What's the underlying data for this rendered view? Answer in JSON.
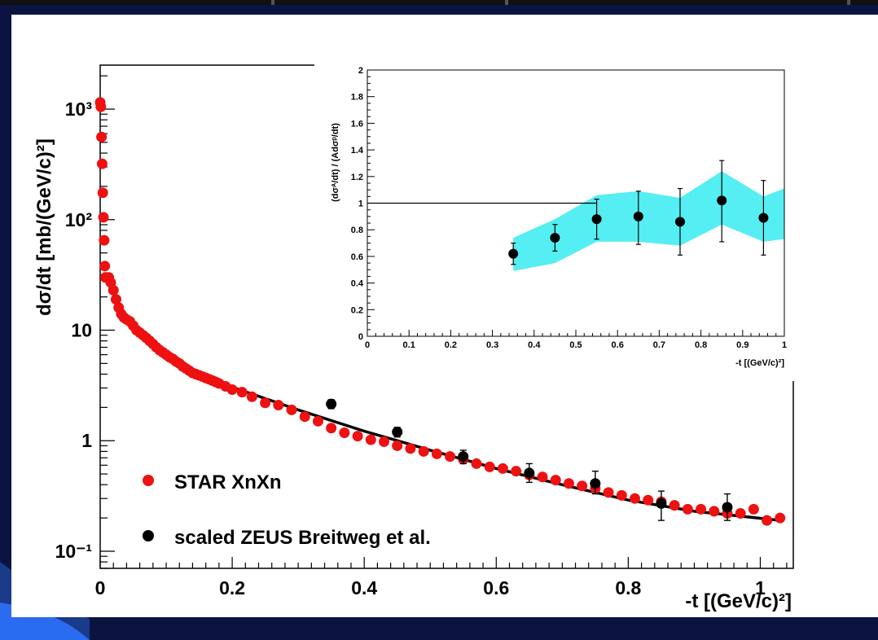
{
  "colors": {
    "star": "#ee1111",
    "zeus": "#000000",
    "band": "#55eef2",
    "slide_bg": "#0b1440",
    "slide_accent": "#d9a31a",
    "slide_wave": "#2a6cf0"
  },
  "chart_data": [
    {
      "type": "scatter",
      "log_y": true,
      "xlabel": "-t [(GeV/c)²]",
      "ylabel": "dσ/dt [mb/(GeV/c)²]",
      "xlim": [
        0,
        1.05
      ],
      "ylim": [
        0.07,
        2500
      ],
      "x_ticks": [
        "0",
        "0.2",
        "0.4",
        "0.6",
        "0.8",
        "1"
      ],
      "y_ticks": [
        "10⁻¹",
        "1",
        "10",
        "10²",
        "10³"
      ],
      "legend_position": "bottom-left",
      "series": [
        {
          "name": "STAR XnXn",
          "marker": "circle",
          "x": [
            0.0,
            0.001,
            0.002,
            0.003,
            0.004,
            0.005,
            0.006,
            0.007,
            0.008,
            0.01,
            0.013,
            0.016,
            0.02,
            0.024,
            0.028,
            0.032,
            0.036,
            0.04,
            0.045,
            0.05,
            0.055,
            0.06,
            0.065,
            0.07,
            0.075,
            0.08,
            0.085,
            0.09,
            0.095,
            0.1,
            0.105,
            0.11,
            0.115,
            0.12,
            0.125,
            0.13,
            0.135,
            0.14,
            0.145,
            0.15,
            0.155,
            0.16,
            0.165,
            0.17,
            0.175,
            0.18,
            0.19,
            0.2,
            0.215,
            0.23,
            0.25,
            0.27,
            0.29,
            0.31,
            0.33,
            0.35,
            0.37,
            0.39,
            0.41,
            0.43,
            0.45,
            0.47,
            0.49,
            0.51,
            0.53,
            0.55,
            0.57,
            0.59,
            0.61,
            0.63,
            0.65,
            0.67,
            0.69,
            0.71,
            0.73,
            0.75,
            0.77,
            0.79,
            0.81,
            0.83,
            0.85,
            0.87,
            0.89,
            0.91,
            0.93,
            0.95,
            0.97,
            0.99,
            1.01,
            1.03
          ],
          "y": [
            1150,
            1050,
            560,
            320,
            175,
            105,
            65,
            38,
            30,
            30,
            30,
            27,
            23,
            19,
            16,
            14,
            13,
            12.5,
            12,
            11,
            10,
            9.5,
            9,
            8.5,
            8,
            7.5,
            7,
            6.6,
            6.3,
            6.0,
            5.7,
            5.5,
            5.2,
            5.0,
            4.7,
            4.5,
            4.3,
            4.1,
            4.0,
            3.9,
            3.8,
            3.7,
            3.6,
            3.5,
            3.4,
            3.3,
            3.1,
            2.9,
            2.75,
            2.5,
            2.2,
            2.1,
            1.9,
            1.65,
            1.5,
            1.3,
            1.18,
            1.1,
            1.02,
            0.98,
            0.9,
            0.85,
            0.8,
            0.76,
            0.72,
            0.68,
            0.62,
            0.58,
            0.56,
            0.53,
            0.49,
            0.47,
            0.44,
            0.41,
            0.39,
            0.37,
            0.34,
            0.32,
            0.3,
            0.29,
            0.28,
            0.26,
            0.24,
            0.24,
            0.23,
            0.22,
            0.22,
            0.24,
            0.19,
            0.2
          ]
        },
        {
          "name": "scaled ZEUS Breitweg et al.",
          "marker": "circle",
          "x": [
            0.35,
            0.45,
            0.55,
            0.65,
            0.75,
            0.85,
            0.95
          ],
          "y": [
            2.15,
            1.2,
            0.72,
            0.51,
            0.41,
            0.27,
            0.25
          ],
          "y_err_lo": [
            0.2,
            0.12,
            0.1,
            0.09,
            0.08,
            0.08,
            0.06
          ],
          "y_err_hi": [
            0.2,
            0.12,
            0.1,
            0.11,
            0.12,
            0.08,
            0.08
          ]
        },
        {
          "type": "line",
          "x": [
            0.2,
            0.3,
            0.4,
            0.5,
            0.6,
            0.7,
            0.8,
            0.9,
            1.03
          ],
          "y": [
            3.05,
            1.9,
            1.22,
            0.82,
            0.56,
            0.4,
            0.29,
            0.23,
            0.19
          ]
        }
      ]
    },
    {
      "type": "scatter",
      "xlabel": "-t [(GeV/c)²]",
      "ylabel": "(dσᴬ/dt) / (Adσᵖ/dt)",
      "xlim": [
        0,
        1
      ],
      "ylim": [
        0,
        2
      ],
      "x_ticks": [
        "0",
        "0.1",
        "0.2",
        "0.3",
        "0.4",
        "0.5",
        "0.6",
        "0.7",
        "0.8",
        "0.9",
        "1"
      ],
      "y_ticks": [
        "0",
        "0.2",
        "0.4",
        "0.6",
        "0.8",
        "1",
        "1.2",
        "1.4",
        "1.6",
        "1.8",
        "2"
      ],
      "reference_line": 1,
      "band": {
        "x": [
          0.35,
          0.45,
          0.55,
          0.65,
          0.75,
          0.85,
          0.95,
          1.0
        ],
        "lower": [
          0.49,
          0.55,
          0.71,
          0.71,
          0.68,
          0.84,
          0.71,
          0.73
        ],
        "upper": [
          0.74,
          0.88,
          1.06,
          1.09,
          1.04,
          1.24,
          1.05,
          1.11
        ]
      },
      "series": [
        {
          "marker": "circle",
          "x": [
            0.35,
            0.45,
            0.55,
            0.65,
            0.75,
            0.85,
            0.95
          ],
          "y": [
            0.62,
            0.74,
            0.88,
            0.9,
            0.86,
            1.02,
            0.89
          ],
          "y_err_lo": [
            0.08,
            0.1,
            0.15,
            0.21,
            0.25,
            0.31,
            0.28
          ],
          "y_err_hi": [
            0.08,
            0.1,
            0.15,
            0.19,
            0.25,
            0.3,
            0.28
          ]
        }
      ]
    }
  ]
}
